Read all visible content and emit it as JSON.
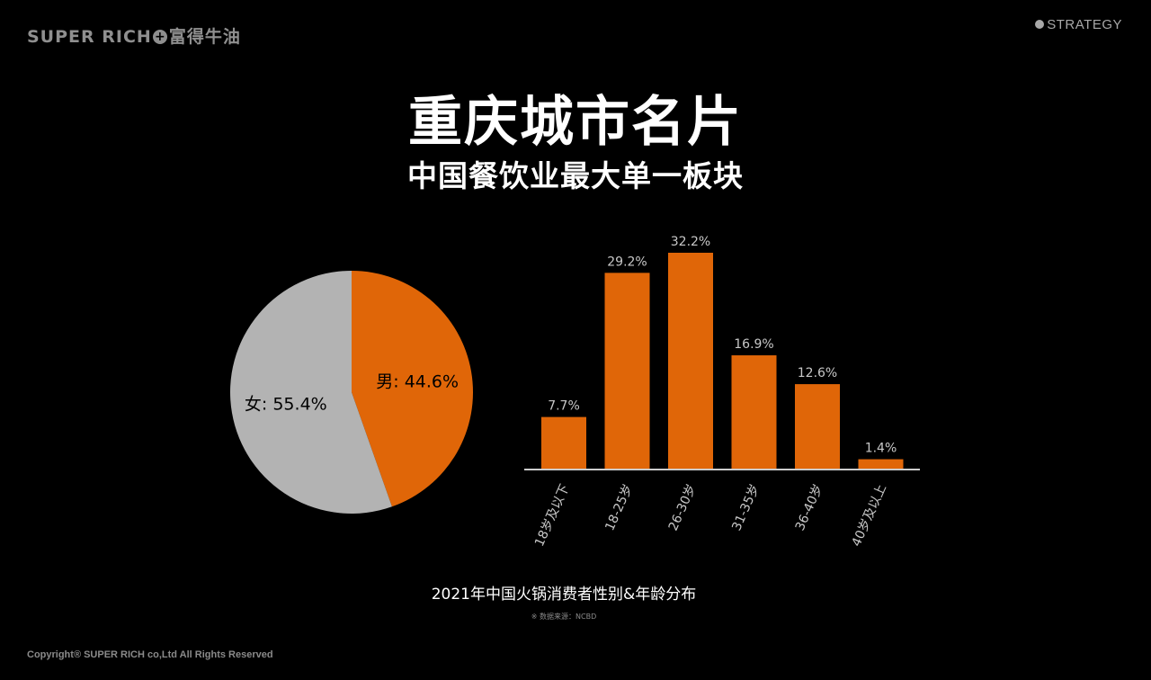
{
  "header": {
    "logo_text": "SUPER RICH",
    "logo_plus": "+",
    "logo_cn": "富得牛油",
    "section": "STRATEGY"
  },
  "title": "重庆城市名片",
  "subtitle": "中国餐饮业最大单一板块",
  "caption": "2021年中国火锅消费者性别&年龄分布",
  "source": "※ 数据来源：NCBD",
  "copyright": "Copyright® SUPER RICH co,Ltd All Rights Reserved",
  "colors": {
    "accent": "#e06608",
    "gray": "#b3b3b3",
    "axis": "#cccccc"
  },
  "chart_data": [
    {
      "type": "pie",
      "slices": [
        {
          "label": "男: 44.6%",
          "value": 44.6,
          "color": "#e06608"
        },
        {
          "label": "女: 55.4%",
          "value": 55.4,
          "color": "#b3b3b3"
        }
      ]
    },
    {
      "type": "bar",
      "categories": [
        "18岁及以下",
        "18-25岁",
        "26-30岁",
        "31-35岁",
        "36-40岁",
        "40岁及以上"
      ],
      "values": [
        7.7,
        29.2,
        32.2,
        16.9,
        12.6,
        1.4
      ],
      "data_labels": [
        "7.7%",
        "29.2%",
        "32.2%",
        "16.9%",
        "12.6%",
        "1.4%"
      ],
      "color": "#e06608",
      "ylim": [
        0,
        32.2
      ],
      "grid": false
    }
  ]
}
